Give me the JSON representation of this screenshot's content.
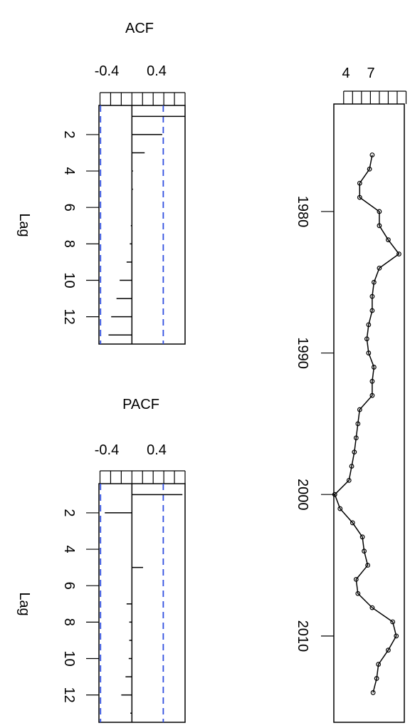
{
  "chart_data": [
    {
      "type": "bar",
      "title": "ACF",
      "xlabel": "",
      "ylabel": "Lag",
      "xlim": [
        -0.62,
        1.0
      ],
      "x_ticks": [
        -0.6,
        -0.4,
        -0.2,
        0.0,
        0.2,
        0.4,
        0.6,
        0.8,
        1.0
      ],
      "x_tick_labels": [
        {
          "value": -0.4,
          "text": "-0.4"
        },
        {
          "value": 0.4,
          "text": "0.4"
        }
      ],
      "y_ticks": [
        2,
        4,
        6,
        8,
        10,
        12
      ],
      "y_tick_labels": [
        "2",
        "4",
        "6",
        "8",
        "10",
        "12"
      ],
      "ylim": [
        0.4,
        13.5
      ],
      "confidence_bound": 0.59,
      "lags": [
        1,
        2,
        3,
        4,
        5,
        6,
        7,
        8,
        9,
        10,
        11,
        12,
        13
      ],
      "values": [
        1.0,
        0.57,
        0.24,
        0.02,
        0.02,
        0.0,
        -0.02,
        -0.04,
        -0.1,
        -0.23,
        -0.29,
        -0.39,
        -0.44
      ]
    },
    {
      "type": "bar",
      "title": "PACF",
      "xlabel": "",
      "ylabel": "Lag",
      "xlim": [
        -0.62,
        1.0
      ],
      "x_ticks": [
        -0.6,
        -0.4,
        -0.2,
        0.0,
        0.2,
        0.4,
        0.6,
        0.8,
        1.0
      ],
      "x_tick_labels": [
        {
          "value": -0.4,
          "text": "-0.4"
        },
        {
          "value": 0.4,
          "text": "0.4"
        }
      ],
      "y_ticks": [
        2,
        4,
        6,
        8,
        10,
        12
      ],
      "y_tick_labels": [
        "2",
        "4",
        "6",
        "8",
        "10",
        "12"
      ],
      "ylim": [
        0.4,
        13.5
      ],
      "confidence_bound": 0.59,
      "lags": [
        1,
        2,
        3,
        4,
        5,
        6,
        7,
        8,
        9,
        10,
        11,
        12,
        13
      ],
      "values": [
        0.95,
        -0.51,
        0.0,
        0.0,
        0.21,
        0.0,
        -0.1,
        -0.05,
        -0.05,
        -0.06,
        -0.12,
        -0.2,
        -0.03
      ]
    },
    {
      "type": "line",
      "title": "",
      "xlabel": "",
      "ylabel": "",
      "xlim": [
        1.9,
        9.8
      ],
      "x_ticks": [
        3,
        4,
        5,
        6,
        7,
        8,
        9,
        10
      ],
      "x_tick_labels": [
        {
          "value": 4,
          "text": "4"
        },
        {
          "value": 7,
          "text": "7"
        }
      ],
      "ylim": [
        1972.4,
        2016.1
      ],
      "y_ticks": [
        1980,
        1990,
        2000,
        2010
      ],
      "y_tick_labels": [
        "1980",
        "1990",
        "2000",
        "2010"
      ],
      "marker": "open-circle",
      "x": [
        1976,
        1977,
        1978,
        1979,
        1980,
        1981,
        1982,
        1983,
        1984,
        1985,
        1986,
        1987,
        1988,
        1989,
        1990,
        1991,
        1992,
        1993,
        1994,
        1995,
        1996,
        1997,
        1998,
        1999,
        2000,
        2001,
        2002,
        2003,
        2004,
        2005,
        2006,
        2007,
        2008,
        2009,
        2010,
        2011,
        2012,
        2013,
        2014
      ],
      "values": [
        6.2,
        5.9,
        4.8,
        4.8,
        7.0,
        7.0,
        8.0,
        9.2,
        7.0,
        6.4,
        6.2,
        6.2,
        5.8,
        5.6,
        5.8,
        6.4,
        6.2,
        6.2,
        4.8,
        4.6,
        4.4,
        4.2,
        3.9,
        3.6,
        2.0,
        2.6,
        4.0,
        5.1,
        5.3,
        5.7,
        4.4,
        4.6,
        6.2,
        8.5,
        8.9,
        8.0,
        6.9,
        6.7,
        6.3
      ]
    }
  ]
}
